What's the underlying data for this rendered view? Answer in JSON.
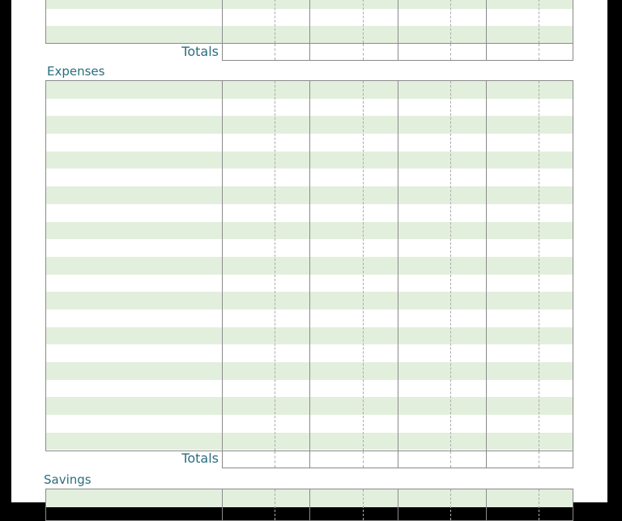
{
  "income": {
    "totals_label": "Totals"
  },
  "expenses": {
    "title": "Expenses",
    "totals_label": "Totals"
  },
  "savings": {
    "title": "Savings"
  },
  "colors": {
    "row_fill": "#e3efdd",
    "heading": "#2a6e7e"
  }
}
